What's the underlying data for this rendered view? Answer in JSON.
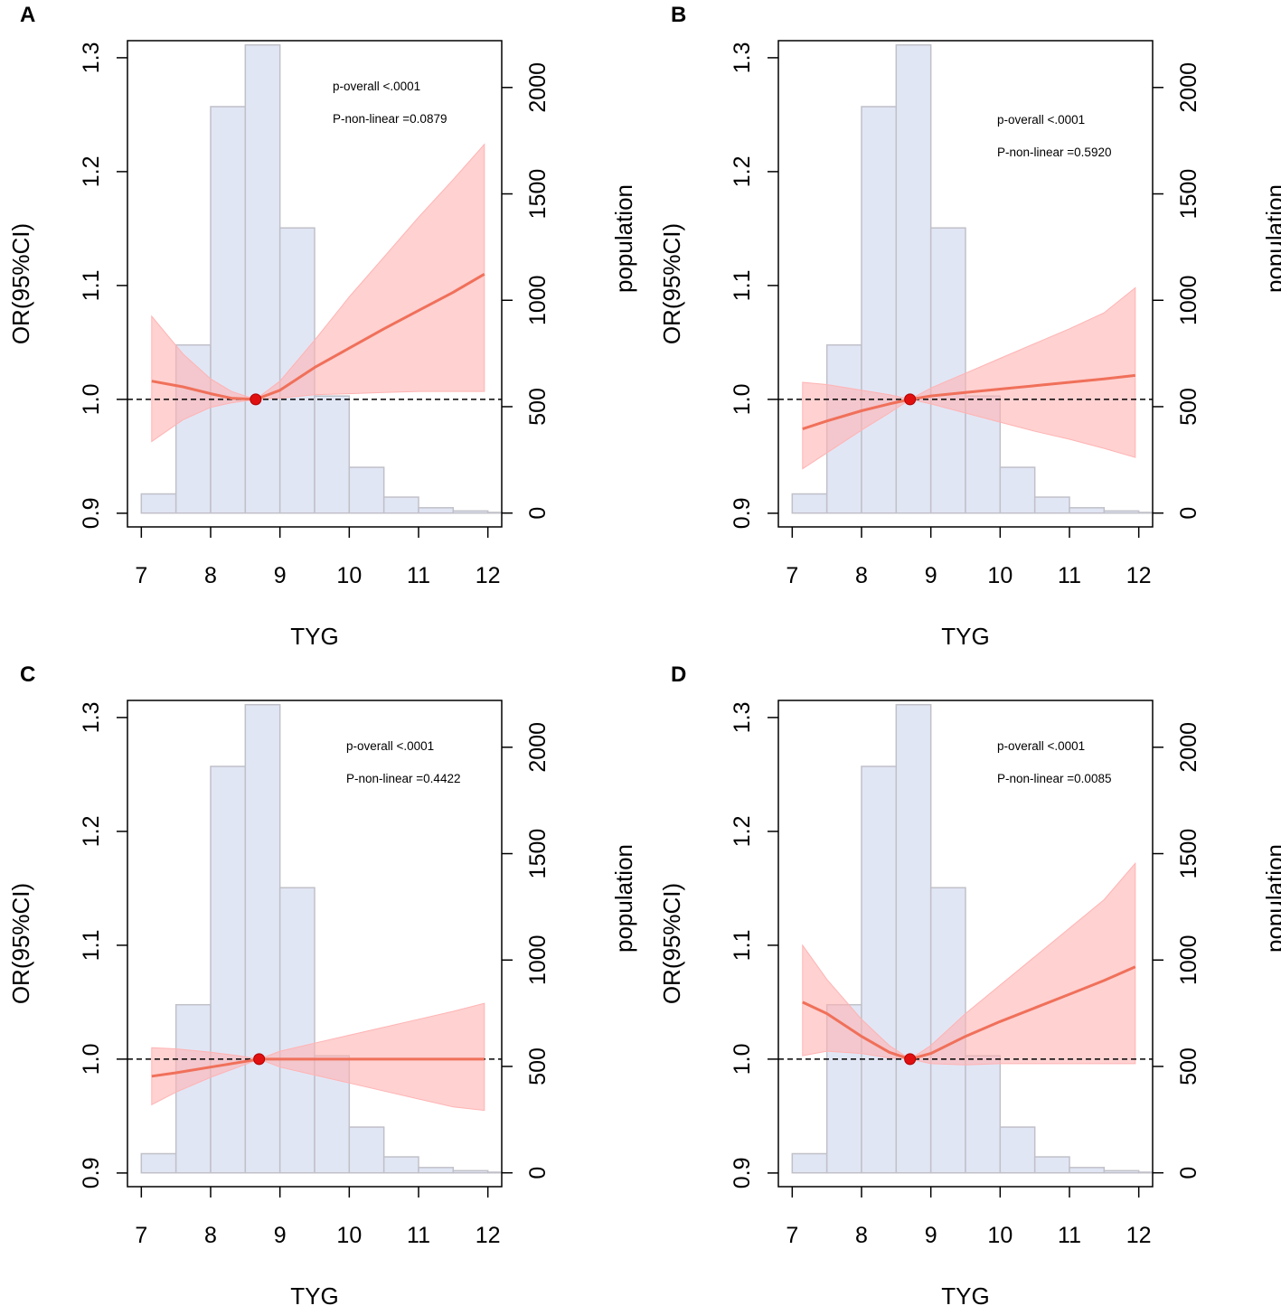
{
  "figure_title": "",
  "chart_data": [
    {
      "panel": "A",
      "type": "line",
      "xlabel": "TYG",
      "ylabel": "OR(95%CI)",
      "y2label": "population",
      "xlim": [
        6.8,
        12.2
      ],
      "ylim": [
        0.888,
        1.315
      ],
      "y2lim": [
        -65,
        2220
      ],
      "xticks": [
        "7",
        "8",
        "9",
        "10",
        "11",
        "12"
      ],
      "yticks": [
        "0.9",
        "1.0",
        "1.1",
        "1.2",
        "1.3"
      ],
      "y2ticks": [
        "0",
        "500",
        "1000",
        "1500",
        "2000"
      ],
      "p_overall": "p-overall <.0001",
      "p_nonlinear": "P-non-linear =0.0879",
      "reference": {
        "x": 8.65,
        "y": 1.0
      },
      "histogram": {
        "bins": [
          7,
          7.5,
          8,
          8.5,
          9,
          9.5,
          10,
          10.5,
          11,
          11.5,
          12,
          12.2
        ],
        "counts": [
          90,
          790,
          1910,
          2200,
          1340,
          550,
          215,
          75,
          25,
          10,
          3
        ]
      },
      "curve": {
        "x": [
          7.15,
          7.6,
          8.0,
          8.3,
          8.65,
          9.0,
          9.5,
          10.0,
          10.5,
          11.0,
          11.5,
          11.95
        ],
        "y": [
          1.016,
          1.011,
          1.005,
          1.001,
          1.0,
          1.008,
          1.028,
          1.045,
          1.062,
          1.078,
          1.094,
          1.11
        ]
      },
      "ci_upper": {
        "x": [
          7.15,
          7.6,
          8.0,
          8.3,
          8.65,
          9.0,
          9.5,
          10.0,
          10.5,
          11.0,
          11.5,
          11.95
        ],
        "y": [
          1.073,
          1.04,
          1.018,
          1.007,
          1.0,
          1.016,
          1.052,
          1.09,
          1.125,
          1.16,
          1.193,
          1.224
        ]
      },
      "ci_lower": {
        "x": [
          7.15,
          7.6,
          8.0,
          8.3,
          8.65,
          9.0,
          9.5,
          10.0,
          10.5,
          11.0,
          11.5,
          11.95
        ],
        "y": [
          0.963,
          0.982,
          0.993,
          0.997,
          1.0,
          1.001,
          1.004,
          1.005,
          1.006,
          1.007,
          1.007,
          1.007
        ]
      },
      "colors": {
        "curve": "#f0705a",
        "band": "#ffb3b3",
        "bar": "#e1e6f5",
        "bar_edge": "#c0c0c8",
        "point": "#e01010"
      }
    },
    {
      "panel": "B",
      "type": "line",
      "xlabel": "TYG",
      "ylabel": "OR(95%CI)",
      "y2label": "population",
      "xlim": [
        6.8,
        12.2
      ],
      "ylim": [
        0.888,
        1.315
      ],
      "y2lim": [
        -65,
        2220
      ],
      "xticks": [
        "7",
        "8",
        "9",
        "10",
        "11",
        "12"
      ],
      "yticks": [
        "0.9",
        "1.0",
        "1.1",
        "1.2",
        "1.3"
      ],
      "y2ticks": [
        "0",
        "500",
        "1000",
        "1500",
        "2000"
      ],
      "p_overall": "p-overall <.0001",
      "p_nonlinear": "P-non-linear =0.5920",
      "reference": {
        "x": 8.7,
        "y": 1.0
      },
      "histogram": {
        "bins": [
          7,
          7.5,
          8,
          8.5,
          9,
          9.5,
          10,
          10.5,
          11,
          11.5,
          12,
          12.2
        ],
        "counts": [
          90,
          790,
          1910,
          2200,
          1340,
          550,
          215,
          75,
          25,
          10,
          3
        ]
      },
      "curve": {
        "x": [
          7.15,
          7.5,
          8.0,
          8.4,
          8.7,
          9.0,
          9.5,
          10.0,
          10.5,
          11.0,
          11.5,
          11.95
        ],
        "y": [
          0.974,
          0.981,
          0.99,
          0.996,
          1.0,
          1.003,
          1.006,
          1.009,
          1.012,
          1.015,
          1.018,
          1.021
        ]
      },
      "ci_upper": {
        "x": [
          7.15,
          7.5,
          8.0,
          8.4,
          8.7,
          9.0,
          9.5,
          10.0,
          10.5,
          11.0,
          11.5,
          11.95
        ],
        "y": [
          1.015,
          1.013,
          1.008,
          1.004,
          1.0,
          1.01,
          1.023,
          1.036,
          1.049,
          1.062,
          1.076,
          1.098
        ]
      },
      "ci_lower": {
        "x": [
          7.15,
          7.5,
          8.0,
          8.4,
          8.7,
          9.0,
          9.5,
          10.0,
          10.5,
          11.0,
          11.5,
          11.95
        ],
        "y": [
          0.939,
          0.953,
          0.973,
          0.988,
          1.0,
          0.996,
          0.988,
          0.98,
          0.972,
          0.965,
          0.957,
          0.949
        ]
      },
      "colors": {
        "curve": "#f0705a",
        "band": "#ffb3b3",
        "bar": "#e1e6f5",
        "bar_edge": "#c0c0c8",
        "point": "#e01010"
      }
    },
    {
      "panel": "C",
      "type": "line",
      "xlabel": "TYG",
      "ylabel": "OR(95%CI)",
      "y2label": "population",
      "xlim": [
        6.8,
        12.2
      ],
      "ylim": [
        0.888,
        1.315
      ],
      "y2lim": [
        -65,
        2220
      ],
      "xticks": [
        "7",
        "8",
        "9",
        "10",
        "11",
        "12"
      ],
      "yticks": [
        "0.9",
        "1.0",
        "1.1",
        "1.2",
        "1.3"
      ],
      "y2ticks": [
        "0",
        "500",
        "1000",
        "1500",
        "2000"
      ],
      "p_overall": "p-overall <.0001",
      "p_nonlinear": "P-non-linear =0.4422",
      "reference": {
        "x": 8.7,
        "y": 1.0
      },
      "histogram": {
        "bins": [
          7,
          7.5,
          8,
          8.5,
          9,
          9.5,
          10,
          10.5,
          11,
          11.5,
          12,
          12.2
        ],
        "counts": [
          90,
          790,
          1910,
          2200,
          1340,
          550,
          215,
          75,
          25,
          10,
          3
        ]
      },
      "curve": {
        "x": [
          7.15,
          7.5,
          8.0,
          8.4,
          8.7,
          9.0,
          9.5,
          10.0,
          10.5,
          11.0,
          11.5,
          11.95
        ],
        "y": [
          0.985,
          0.988,
          0.993,
          0.997,
          1.0,
          1.0,
          1.0,
          1.0,
          1.0,
          1.0,
          1.0,
          1.0
        ]
      },
      "ci_upper": {
        "x": [
          7.15,
          7.5,
          8.0,
          8.4,
          8.7,
          9.0,
          9.5,
          10.0,
          10.5,
          11.0,
          11.5,
          11.95
        ],
        "y": [
          1.01,
          1.009,
          1.006,
          1.003,
          1.0,
          1.007,
          1.014,
          1.021,
          1.028,
          1.035,
          1.042,
          1.049
        ]
      },
      "ci_lower": {
        "x": [
          7.15,
          7.5,
          8.0,
          8.4,
          8.7,
          9.0,
          9.5,
          10.0,
          10.5,
          11.0,
          11.5,
          11.95
        ],
        "y": [
          0.96,
          0.971,
          0.984,
          0.993,
          1.0,
          0.993,
          0.986,
          0.979,
          0.972,
          0.965,
          0.958,
          0.955
        ]
      },
      "colors": {
        "curve": "#f0705a",
        "band": "#ffb3b3",
        "bar": "#e1e6f5",
        "bar_edge": "#c0c0c8",
        "point": "#e01010"
      }
    },
    {
      "panel": "D",
      "type": "line",
      "xlabel": "TYG",
      "ylabel": "OR(95%CI)",
      "y2label": "population",
      "xlim": [
        6.8,
        12.2
      ],
      "ylim": [
        0.888,
        1.315
      ],
      "y2lim": [
        -65,
        2220
      ],
      "xticks": [
        "7",
        "8",
        "9",
        "10",
        "11",
        "12"
      ],
      "yticks": [
        "0.9",
        "1.0",
        "1.1",
        "1.2",
        "1.3"
      ],
      "y2ticks": [
        "0",
        "500",
        "1000",
        "1500",
        "2000"
      ],
      "p_overall": "p-overall <.0001",
      "p_nonlinear": "P-non-linear =0.0085",
      "reference": {
        "x": 8.7,
        "y": 1.0
      },
      "histogram": {
        "bins": [
          7,
          7.5,
          8,
          8.5,
          9,
          9.5,
          10,
          10.5,
          11,
          11.5,
          12,
          12.2
        ],
        "counts": [
          90,
          790,
          1910,
          2200,
          1340,
          550,
          215,
          75,
          25,
          10,
          3
        ]
      },
      "curve": {
        "x": [
          7.15,
          7.5,
          8.0,
          8.4,
          8.7,
          9.0,
          9.5,
          10.0,
          10.5,
          11.0,
          11.5,
          11.95
        ],
        "y": [
          1.05,
          1.04,
          1.02,
          1.006,
          1.0,
          1.005,
          1.02,
          1.033,
          1.045,
          1.057,
          1.069,
          1.081
        ]
      },
      "ci_upper": {
        "x": [
          7.15,
          7.5,
          8.0,
          8.4,
          8.7,
          9.0,
          9.5,
          10.0,
          10.5,
          11.0,
          11.5,
          11.95
        ],
        "y": [
          1.1,
          1.07,
          1.035,
          1.012,
          1.0,
          1.012,
          1.04,
          1.065,
          1.09,
          1.115,
          1.14,
          1.172
        ]
      },
      "ci_lower": {
        "x": [
          7.15,
          7.5,
          8.0,
          8.4,
          8.7,
          9.0,
          9.5,
          10.0,
          10.5,
          11.0,
          11.5,
          11.95
        ],
        "y": [
          1.003,
          1.007,
          1.005,
          1.001,
          1.0,
          0.996,
          0.995,
          0.996,
          0.996,
          0.996,
          0.996,
          0.996
        ]
      },
      "colors": {
        "curve": "#f0705a",
        "band": "#ffb3b3",
        "bar": "#e1e6f5",
        "bar_edge": "#c0c0c8",
        "point": "#e01010"
      }
    }
  ]
}
